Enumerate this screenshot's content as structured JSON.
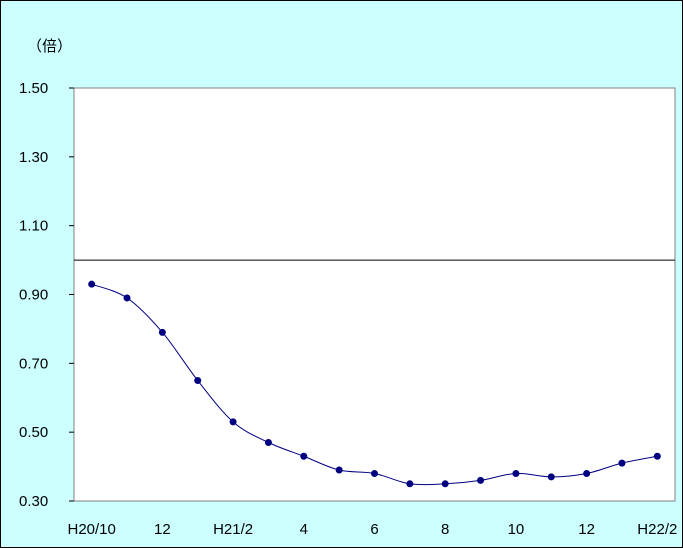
{
  "chart_data": {
    "type": "line",
    "title": "",
    "unit_label": "（倍）",
    "xlabel": "",
    "ylabel": "",
    "ylim": [
      0.3,
      1.5
    ],
    "y_ticks": [
      0.3,
      0.5,
      0.7,
      0.9,
      1.1,
      1.3,
      1.5
    ],
    "y_tick_labels": [
      "0.30",
      "0.50",
      "0.70",
      "0.90",
      "1.10",
      "1.30",
      "1.50"
    ],
    "reference_line": 1.0,
    "grid": false,
    "x_tick_labels": [
      {
        "index": 0,
        "label": "H20/10"
      },
      {
        "index": 2,
        "label": "12"
      },
      {
        "index": 4,
        "label": "H21/2"
      },
      {
        "index": 6,
        "label": "4"
      },
      {
        "index": 8,
        "label": "6"
      },
      {
        "index": 10,
        "label": "8"
      },
      {
        "index": 12,
        "label": "10"
      },
      {
        "index": 14,
        "label": "12"
      },
      {
        "index": 16,
        "label": "H22/2"
      }
    ],
    "series": [
      {
        "values": [
          0.93,
          0.89,
          0.79,
          0.65,
          0.53,
          0.47,
          0.43,
          0.39,
          0.38,
          0.35,
          0.35,
          0.36,
          0.38,
          0.37,
          0.38,
          0.41,
          0.43
        ],
        "color": "#000080"
      }
    ],
    "colors": {
      "background": "#ccffff",
      "plot_area": "#ffffff",
      "series": "#000080"
    }
  }
}
